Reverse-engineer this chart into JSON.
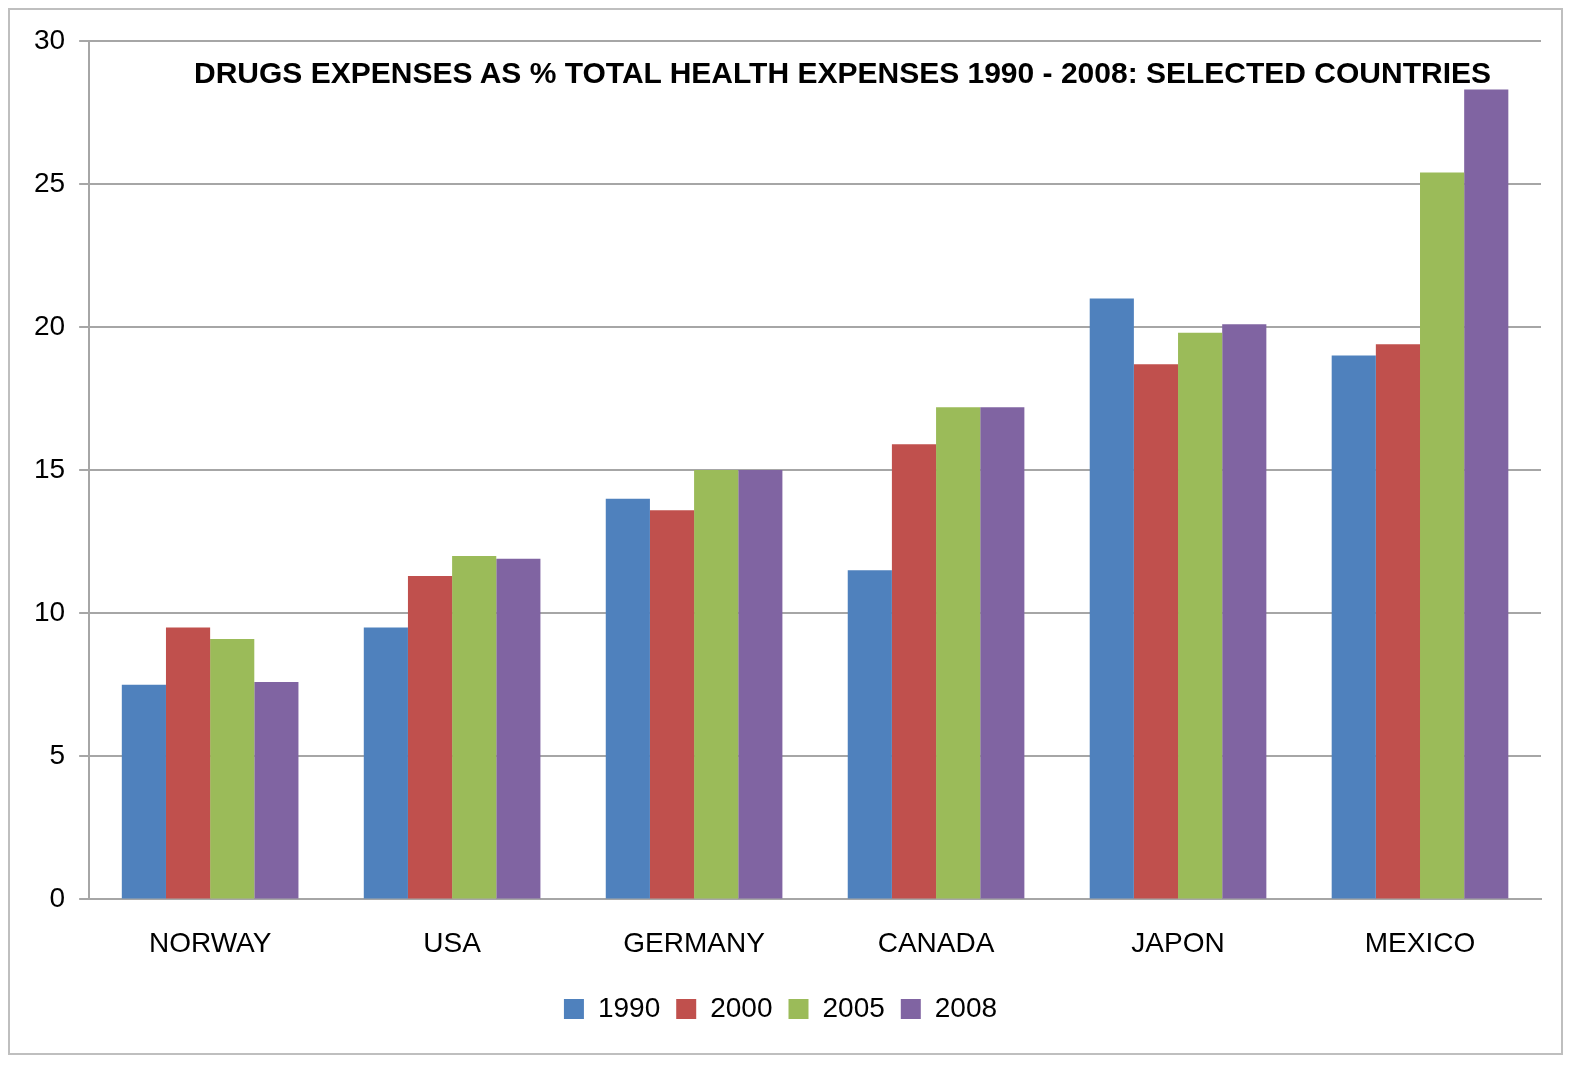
{
  "chart_data": {
    "type": "bar",
    "title": "DRUGS EXPENSES AS % TOTAL HEALTH EXPENSES 1990 - 2008: SELECTED COUNTRIES",
    "categories": [
      "NORWAY",
      "USA",
      "GERMANY",
      "CANADA",
      "JAPON",
      "MEXICO"
    ],
    "series": [
      {
        "name": "1990",
        "color": "#4f81bd",
        "values": [
          7.5,
          9.5,
          14.0,
          11.5,
          21.0,
          19.0
        ]
      },
      {
        "name": "2000",
        "color": "#c0504d",
        "values": [
          9.5,
          11.3,
          13.6,
          15.9,
          18.7,
          19.4
        ]
      },
      {
        "name": "2005",
        "color": "#9bbb59",
        "values": [
          9.1,
          12.0,
          15.0,
          17.2,
          19.8,
          25.4
        ]
      },
      {
        "name": "2008",
        "color": "#8064a2",
        "values": [
          7.6,
          11.9,
          15.0,
          17.2,
          20.1,
          28.3
        ]
      }
    ],
    "ylim": [
      0,
      30
    ],
    "yticks": [
      0,
      5,
      10,
      15,
      20,
      25,
      30
    ],
    "grid": "y",
    "legend": "bottom"
  }
}
